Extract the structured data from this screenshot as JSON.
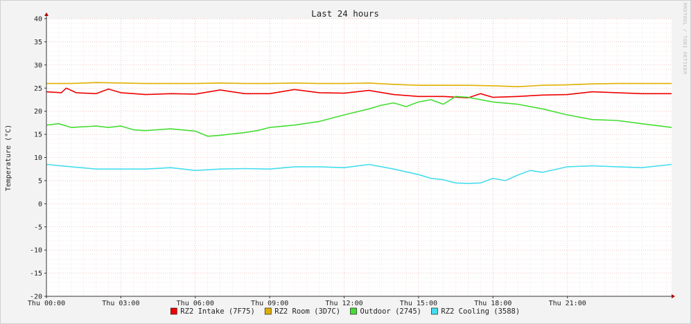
{
  "chart_data": {
    "type": "line",
    "title": "Last 24 hours",
    "ylabel": "Temperature (°C)",
    "watermark": "RRDTOOL / TOBI OETIKER",
    "ylim": [
      -20,
      40
    ],
    "xlim_hours": [
      0,
      25.2
    ],
    "yticks": [
      -20,
      -15,
      -10,
      -5,
      0,
      5,
      10,
      15,
      20,
      25,
      30,
      35,
      40
    ],
    "xticks": [
      {
        "hour": 0,
        "label": "Thu 00:00"
      },
      {
        "hour": 3,
        "label": "Thu 03:00"
      },
      {
        "hour": 6,
        "label": "Thu 06:00"
      },
      {
        "hour": 9,
        "label": "Thu 09:00"
      },
      {
        "hour": 12,
        "label": "Thu 12:00"
      },
      {
        "hour": 15,
        "label": "Thu 15:00"
      },
      {
        "hour": 18,
        "label": "Thu 18:00"
      },
      {
        "hour": 21,
        "label": "Thu 21:00"
      }
    ],
    "grid": true,
    "legend_position": "bottom",
    "series": [
      {
        "name": "RZ2 Intake (7F75)",
        "color": "#ee0000",
        "x": [
          0,
          0.6,
          0.8,
          1.2,
          2,
          2.5,
          3,
          4,
          5,
          6,
          7,
          8,
          9,
          10,
          11,
          12,
          13,
          14,
          15,
          16,
          17,
          17.5,
          18,
          19,
          20,
          21,
          22,
          23,
          24,
          25.2
        ],
        "y": [
          24.2,
          24,
          25,
          24,
          23.8,
          24.8,
          24,
          23.6,
          23.8,
          23.7,
          24.6,
          23.8,
          23.8,
          24.7,
          24,
          23.9,
          24.5,
          23.6,
          23.2,
          23.2,
          22.9,
          23.8,
          23,
          23.2,
          23.5,
          23.6,
          24.2,
          24,
          23.8,
          23.8
        ]
      },
      {
        "name": "RZ2 Room (3D7C)",
        "color": "#e0b000",
        "x": [
          0,
          1,
          2,
          3,
          4,
          5,
          6,
          7,
          8,
          9,
          10,
          11,
          12,
          13,
          14,
          15,
          16,
          17,
          18,
          19,
          20,
          21,
          22,
          23,
          24,
          25.2
        ],
        "y": [
          26,
          26,
          26.2,
          26.1,
          26,
          26,
          26,
          26.1,
          26,
          26,
          26.1,
          26,
          26,
          26.1,
          25.8,
          25.6,
          25.6,
          25.6,
          25.5,
          25.3,
          25.6,
          25.7,
          25.9,
          26,
          26,
          26
        ]
      },
      {
        "name": "Outdoor (2745)",
        "color": "#44dd33",
        "x": [
          0,
          0.5,
          1,
          2,
          2.5,
          3,
          3.5,
          4,
          5,
          6,
          6.5,
          7,
          8,
          8.5,
          9,
          10,
          11,
          12,
          13,
          13.5,
          14,
          14.5,
          15,
          15.5,
          16,
          16.5,
          17,
          18,
          19,
          20,
          21,
          22,
          23,
          24,
          25.2
        ],
        "y": [
          17,
          17.3,
          16.5,
          16.8,
          16.5,
          16.8,
          16,
          15.8,
          16.2,
          15.7,
          14.6,
          14.8,
          15.4,
          15.8,
          16.5,
          17,
          17.8,
          19.2,
          20.5,
          21.3,
          21.8,
          21,
          22,
          22.5,
          21.5,
          23.2,
          23,
          22,
          21.5,
          20.5,
          19.2,
          18.2,
          18,
          17.3,
          16.5
        ]
      },
      {
        "name": "RZ2 Cooling (3588)",
        "color": "#44ddee",
        "x": [
          0,
          1,
          2,
          3,
          4,
          5,
          6,
          7,
          8,
          9,
          10,
          11,
          12,
          13,
          14,
          15,
          15.5,
          16,
          16.5,
          17,
          17.5,
          18,
          18.5,
          19,
          19.5,
          20,
          21,
          22,
          23,
          24,
          25.2
        ],
        "y": [
          8.5,
          8,
          7.5,
          7.5,
          7.5,
          7.8,
          7.2,
          7.5,
          7.6,
          7.5,
          8,
          8,
          7.8,
          8.5,
          7.5,
          6.3,
          5.5,
          5.2,
          4.5,
          4.4,
          4.5,
          5.5,
          5,
          6.2,
          7.2,
          6.8,
          8,
          8.2,
          8,
          7.8,
          8.5
        ]
      }
    ]
  }
}
